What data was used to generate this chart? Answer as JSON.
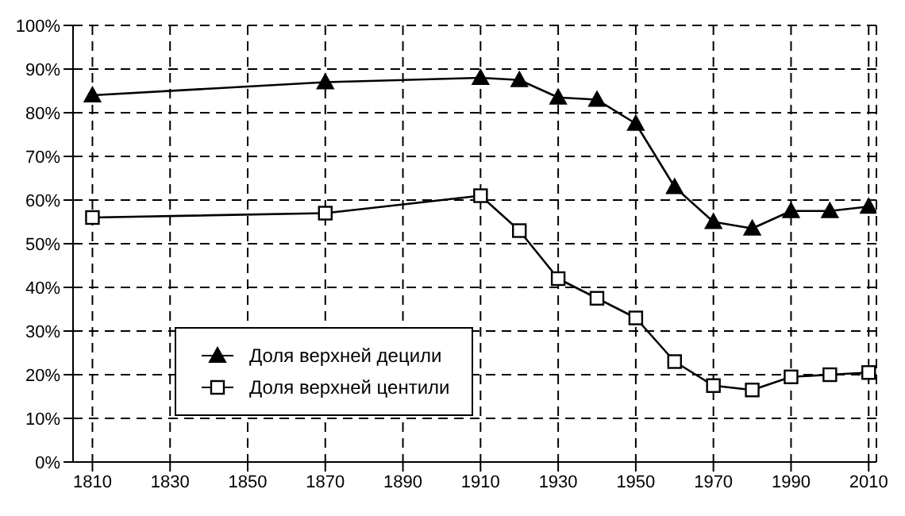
{
  "chart_data": {
    "type": "line",
    "x": [
      1810,
      1870,
      1910,
      1920,
      1930,
      1940,
      1950,
      1960,
      1970,
      1980,
      1990,
      2000,
      2010
    ],
    "series": [
      {
        "name": "Доля верхней децили",
        "color": "#000000",
        "marker": "triangle",
        "values": [
          84,
          87,
          88,
          87.5,
          83.5,
          83,
          77.5,
          63,
          55,
          53.5,
          57.5,
          57.5,
          58.5
        ]
      },
      {
        "name": "Доля верхней центили",
        "color": "#000000",
        "marker": "square",
        "values": [
          56,
          57,
          61,
          53,
          42,
          37.5,
          33,
          23,
          17.5,
          16.5,
          19.5,
          20,
          20.5
        ]
      }
    ],
    "xlim": [
      1805,
      2012
    ],
    "xticks": [
      1810,
      1830,
      1850,
      1870,
      1890,
      1910,
      1930,
      1950,
      1970,
      1990,
      2010
    ],
    "ylim": [
      0,
      100
    ],
    "yticks": [
      {
        "value": 0,
        "label": "0%"
      },
      {
        "value": 10,
        "label": "10%"
      },
      {
        "value": 20,
        "label": "20%"
      },
      {
        "value": 30,
        "label": "30%"
      },
      {
        "value": 40,
        "label": "40%"
      },
      {
        "value": 50,
        "label": "50%"
      },
      {
        "value": 60,
        "label": "60%"
      },
      {
        "value": 70,
        "label": "70%"
      },
      {
        "value": 80,
        "label": "80%"
      },
      {
        "value": 90,
        "label": "90%"
      },
      {
        "value": 100,
        "label": "100%"
      }
    ],
    "grid": true,
    "legend": "bottom left",
    "line_style": "solid"
  }
}
